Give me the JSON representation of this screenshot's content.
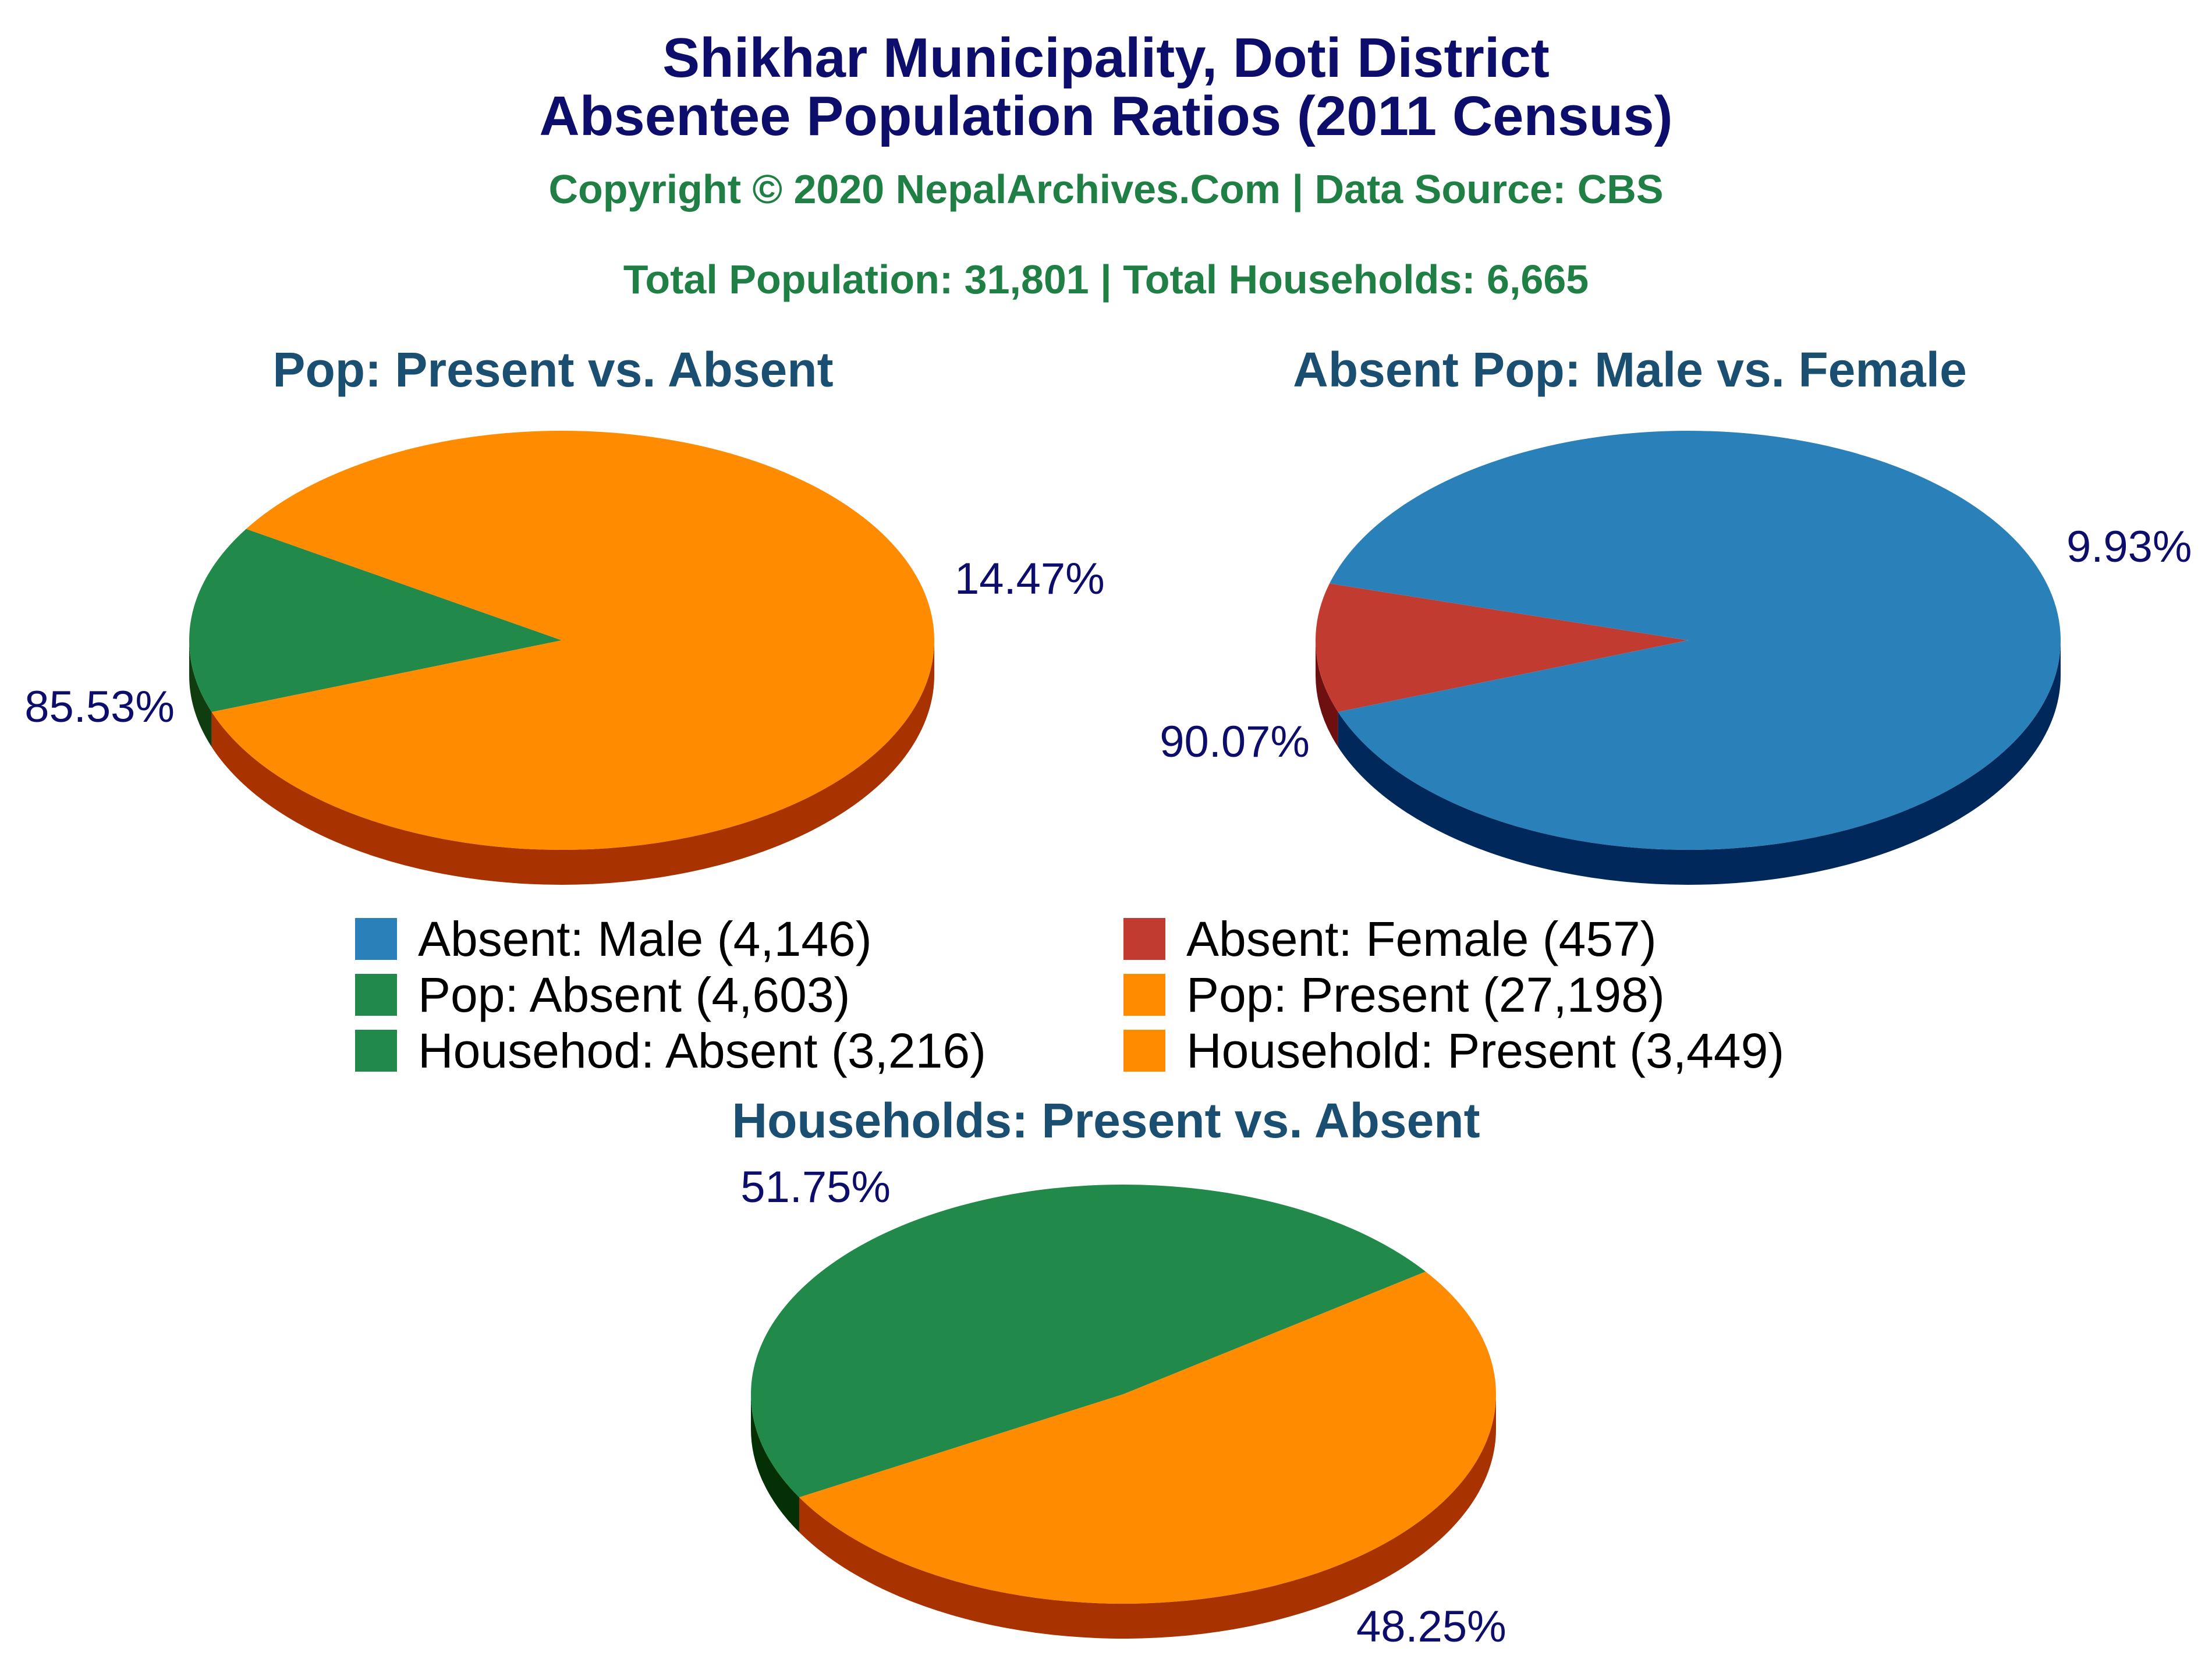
{
  "header": {
    "title_line1": "Shikhar Municipality, Doti District",
    "title_line2": "Absentee Population Ratios (2011 Census)",
    "copyright": "Copyright © 2020 NepalArchives.Com | Data Source: CBS",
    "totals": "Total Population: 31,801 | Total Households: 6,665"
  },
  "chart_data": [
    {
      "type": "pie",
      "title": "Pop: Present vs. Absent",
      "slices": [
        {
          "name": "Pop: Absent",
          "value": 4603,
          "percent": 14.47,
          "label": "14.47%",
          "color": "#21894a",
          "side": "#0f3d10"
        },
        {
          "name": "Pop: Present",
          "value": 27198,
          "percent": 85.53,
          "label": "85.53%",
          "color": "#ff8c00",
          "side": "#a83200"
        }
      ]
    },
    {
      "type": "pie",
      "title": "Absent Pop: Male vs. Female",
      "slices": [
        {
          "name": "Absent: Female",
          "value": 457,
          "percent": 9.93,
          "label": "9.93%",
          "color": "#c23b30",
          "side": "#6e1010"
        },
        {
          "name": "Absent: Male",
          "value": 4146,
          "percent": 90.07,
          "label": "90.07%",
          "color": "#2a80b9",
          "side": "#00285a"
        }
      ]
    },
    {
      "type": "pie",
      "title": "Households: Present vs. Absent",
      "slices": [
        {
          "name": "Househod: Absent",
          "value": 3216,
          "percent": 48.25,
          "label": "48.25%",
          "color": "#21894a",
          "side": "#053005"
        },
        {
          "name": "Household: Present",
          "value": 3449,
          "percent": 51.75,
          "label": "51.75%",
          "color": "#ff8c00",
          "side": "#a83200"
        }
      ]
    }
  ],
  "legend": [
    {
      "label": "Absent: Male (4,146)",
      "color": "#2a80b9"
    },
    {
      "label": "Absent: Female (457)",
      "color": "#c23b30"
    },
    {
      "label": "Pop: Absent (4,603)",
      "color": "#21894a"
    },
    {
      "label": "Pop: Present (27,198)",
      "color": "#ff8c00"
    },
    {
      "label": "Househod: Absent (3,216)",
      "color": "#21894a"
    },
    {
      "label": "Household: Present (3,449)",
      "color": "#ff8c00"
    }
  ]
}
